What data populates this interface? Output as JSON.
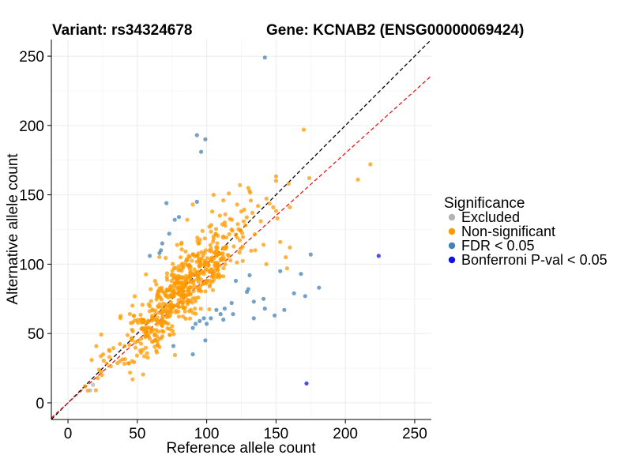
{
  "header": {
    "variant_title": "Variant: rs34324678",
    "gene_title": "Gene: KCNAB2 (ENSG00000069424)"
  },
  "chart_data": {
    "type": "scatter",
    "xlabel": "Reference allele count",
    "ylabel": "Alternative allele count",
    "xlim": [
      -12,
      262
    ],
    "ylim": [
      -12,
      262
    ],
    "x_ticks": [
      0,
      50,
      100,
      150,
      200,
      250
    ],
    "y_ticks": [
      0,
      50,
      100,
      150,
      200,
      250
    ],
    "grid": true,
    "reference_lines": [
      {
        "kind": "identity",
        "slope": 1.0,
        "intercept": 0,
        "color": "#000000",
        "dash": "dashed"
      },
      {
        "kind": "fit",
        "slope": 0.9,
        "intercept": 0,
        "color": "#e41a1c",
        "dash": "dashed"
      }
    ],
    "legend": {
      "title": "Significance",
      "placement": "right",
      "entries": [
        {
          "label": "Excluded",
          "color": "#b3b3b3"
        },
        {
          "label": "Non-significant",
          "color": "#ff9900"
        },
        {
          "label": "FDR < 0.05",
          "color": "#4682b4"
        },
        {
          "label": "Bonferroni P-val < 0.05",
          "color": "#1010f0"
        }
      ]
    },
    "series": [
      {
        "name": "Excluded",
        "color": "#b3b3b3",
        "points": [
          [
            16,
            9
          ],
          [
            18,
            13
          ]
        ]
      },
      {
        "name": "FDR < 0.05",
        "color": "#4682b4",
        "points": [
          [
            142,
            249
          ],
          [
            93,
            193
          ],
          [
            99,
            190
          ],
          [
            96,
            181
          ],
          [
            71,
            144
          ],
          [
            93,
            145
          ],
          [
            77,
            132
          ],
          [
            80,
            134
          ],
          [
            59,
            106
          ],
          [
            66,
            108
          ],
          [
            68,
            115
          ],
          [
            67,
            110
          ],
          [
            73,
            122
          ],
          [
            175,
            107
          ],
          [
            168,
            93
          ],
          [
            153,
            95
          ],
          [
            181,
            83
          ],
          [
            171,
            77
          ],
          [
            163,
            79
          ],
          [
            141,
            75
          ],
          [
            149,
            63
          ],
          [
            156,
            67
          ],
          [
            134,
            73
          ],
          [
            134,
            61
          ],
          [
            142,
            68
          ],
          [
            118,
            72
          ],
          [
            119,
            64
          ],
          [
            113,
            68
          ],
          [
            112,
            60
          ],
          [
            110,
            64
          ],
          [
            107,
            67
          ],
          [
            103,
            61
          ],
          [
            100,
            57
          ],
          [
            98,
            61
          ],
          [
            95,
            59
          ],
          [
            92,
            57
          ],
          [
            90,
            54
          ],
          [
            99,
            45
          ],
          [
            90,
            35
          ],
          [
            76,
            41
          ],
          [
            130,
            82
          ],
          [
            129,
            80
          ],
          [
            131,
            92
          ],
          [
            121,
            88
          ]
        ]
      },
      {
        "name": "Bonferroni P-val < 0.05",
        "color": "#1010f0",
        "points": [
          [
            224,
            106
          ],
          [
            172,
            14
          ]
        ]
      },
      {
        "name": "Non-significant",
        "color": "#ff9900",
        "points": [
          [
            170,
            197
          ],
          [
            218,
            172
          ],
          [
            209,
            161
          ],
          [
            159,
            158
          ],
          [
            174,
            162
          ],
          [
            124,
            157
          ],
          [
            130,
            155
          ],
          [
            116,
            151
          ],
          [
            137,
            142
          ],
          [
            148,
            141
          ],
          [
            105,
            150
          ],
          [
            112,
            146
          ],
          [
            90,
            143
          ],
          [
            122,
            143
          ],
          [
            160,
            141
          ],
          [
            133,
            137
          ],
          [
            86,
            132
          ],
          [
            104,
            138
          ],
          [
            125,
            138
          ],
          [
            139,
            131
          ],
          [
            151,
            133
          ],
          [
            118,
            125
          ],
          [
            128,
            128
          ],
          [
            102,
            127
          ],
          [
            97,
            124
          ],
          [
            112,
            120
          ],
          [
            141,
            114
          ],
          [
            153,
            116
          ],
          [
            135,
            110
          ],
          [
            157,
            105
          ],
          [
            160,
            112
          ],
          [
            143,
            100
          ],
          [
            158,
            97
          ]
        ],
        "generated": {
          "count": 600,
          "x_center": 82,
          "x_spread": 24,
          "x_min": 12,
          "x_max": 150,
          "slope": 1.0,
          "noise": 13
        }
      }
    ]
  }
}
